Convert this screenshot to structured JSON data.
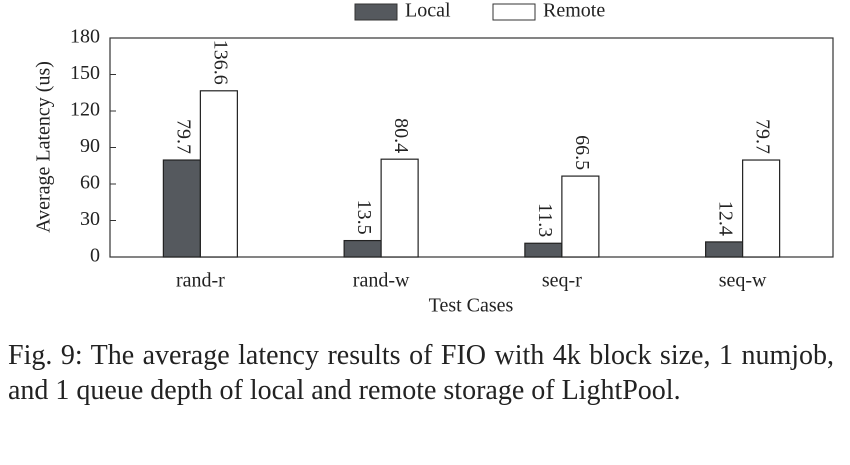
{
  "chart_data": {
    "type": "bar",
    "categories": [
      "rand-r",
      "rand-w",
      "seq-r",
      "seq-w"
    ],
    "series": [
      {
        "name": "Local",
        "color": "#55595e",
        "values": [
          79.7,
          13.5,
          11.3,
          12.4
        ]
      },
      {
        "name": "Remote",
        "color": "#ffffff",
        "values": [
          136.6,
          80.4,
          66.5,
          79.7
        ]
      }
    ],
    "ylabel": "Average Latency (us)",
    "xlabel": "Test Cases",
    "ylim": [
      0,
      180
    ],
    "yticks": [
      0,
      30,
      60,
      90,
      120,
      150,
      180
    ],
    "grid": false,
    "legend": "top"
  },
  "caption": "Fig. 9: The average latency results of FIO with 4k block size, 1 numjob, and 1 queue depth of local and remote storage of LightPool."
}
